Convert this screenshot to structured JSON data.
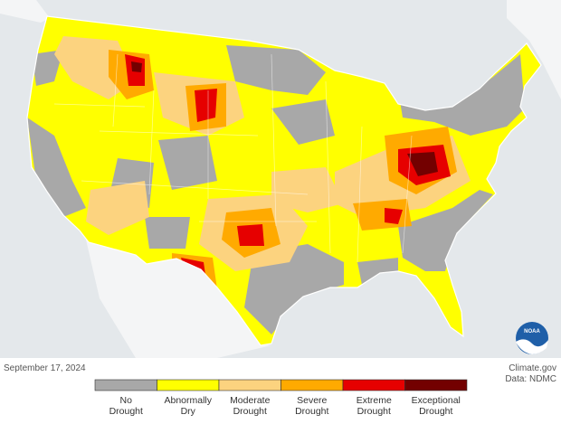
{
  "date": "September 17, 2024",
  "credit": {
    "source": "Climate.gov",
    "data": "Data: NDMC"
  },
  "logo": "NOAA",
  "legend": [
    {
      "lines": [
        "No",
        "Drought"
      ],
      "color": "#a8a8a8"
    },
    {
      "lines": [
        "Abnormally",
        "Dry"
      ],
      "color": "#ffff00"
    },
    {
      "lines": [
        "Moderate",
        "Drought"
      ],
      "color": "#fcd37f"
    },
    {
      "lines": [
        "Severe",
        "Drought"
      ],
      "color": "#ffaa00"
    },
    {
      "lines": [
        "Extreme",
        "Drought"
      ],
      "color": "#e60000"
    },
    {
      "lines": [
        "Exceptional",
        "Drought"
      ],
      "color": "#730000"
    }
  ]
}
